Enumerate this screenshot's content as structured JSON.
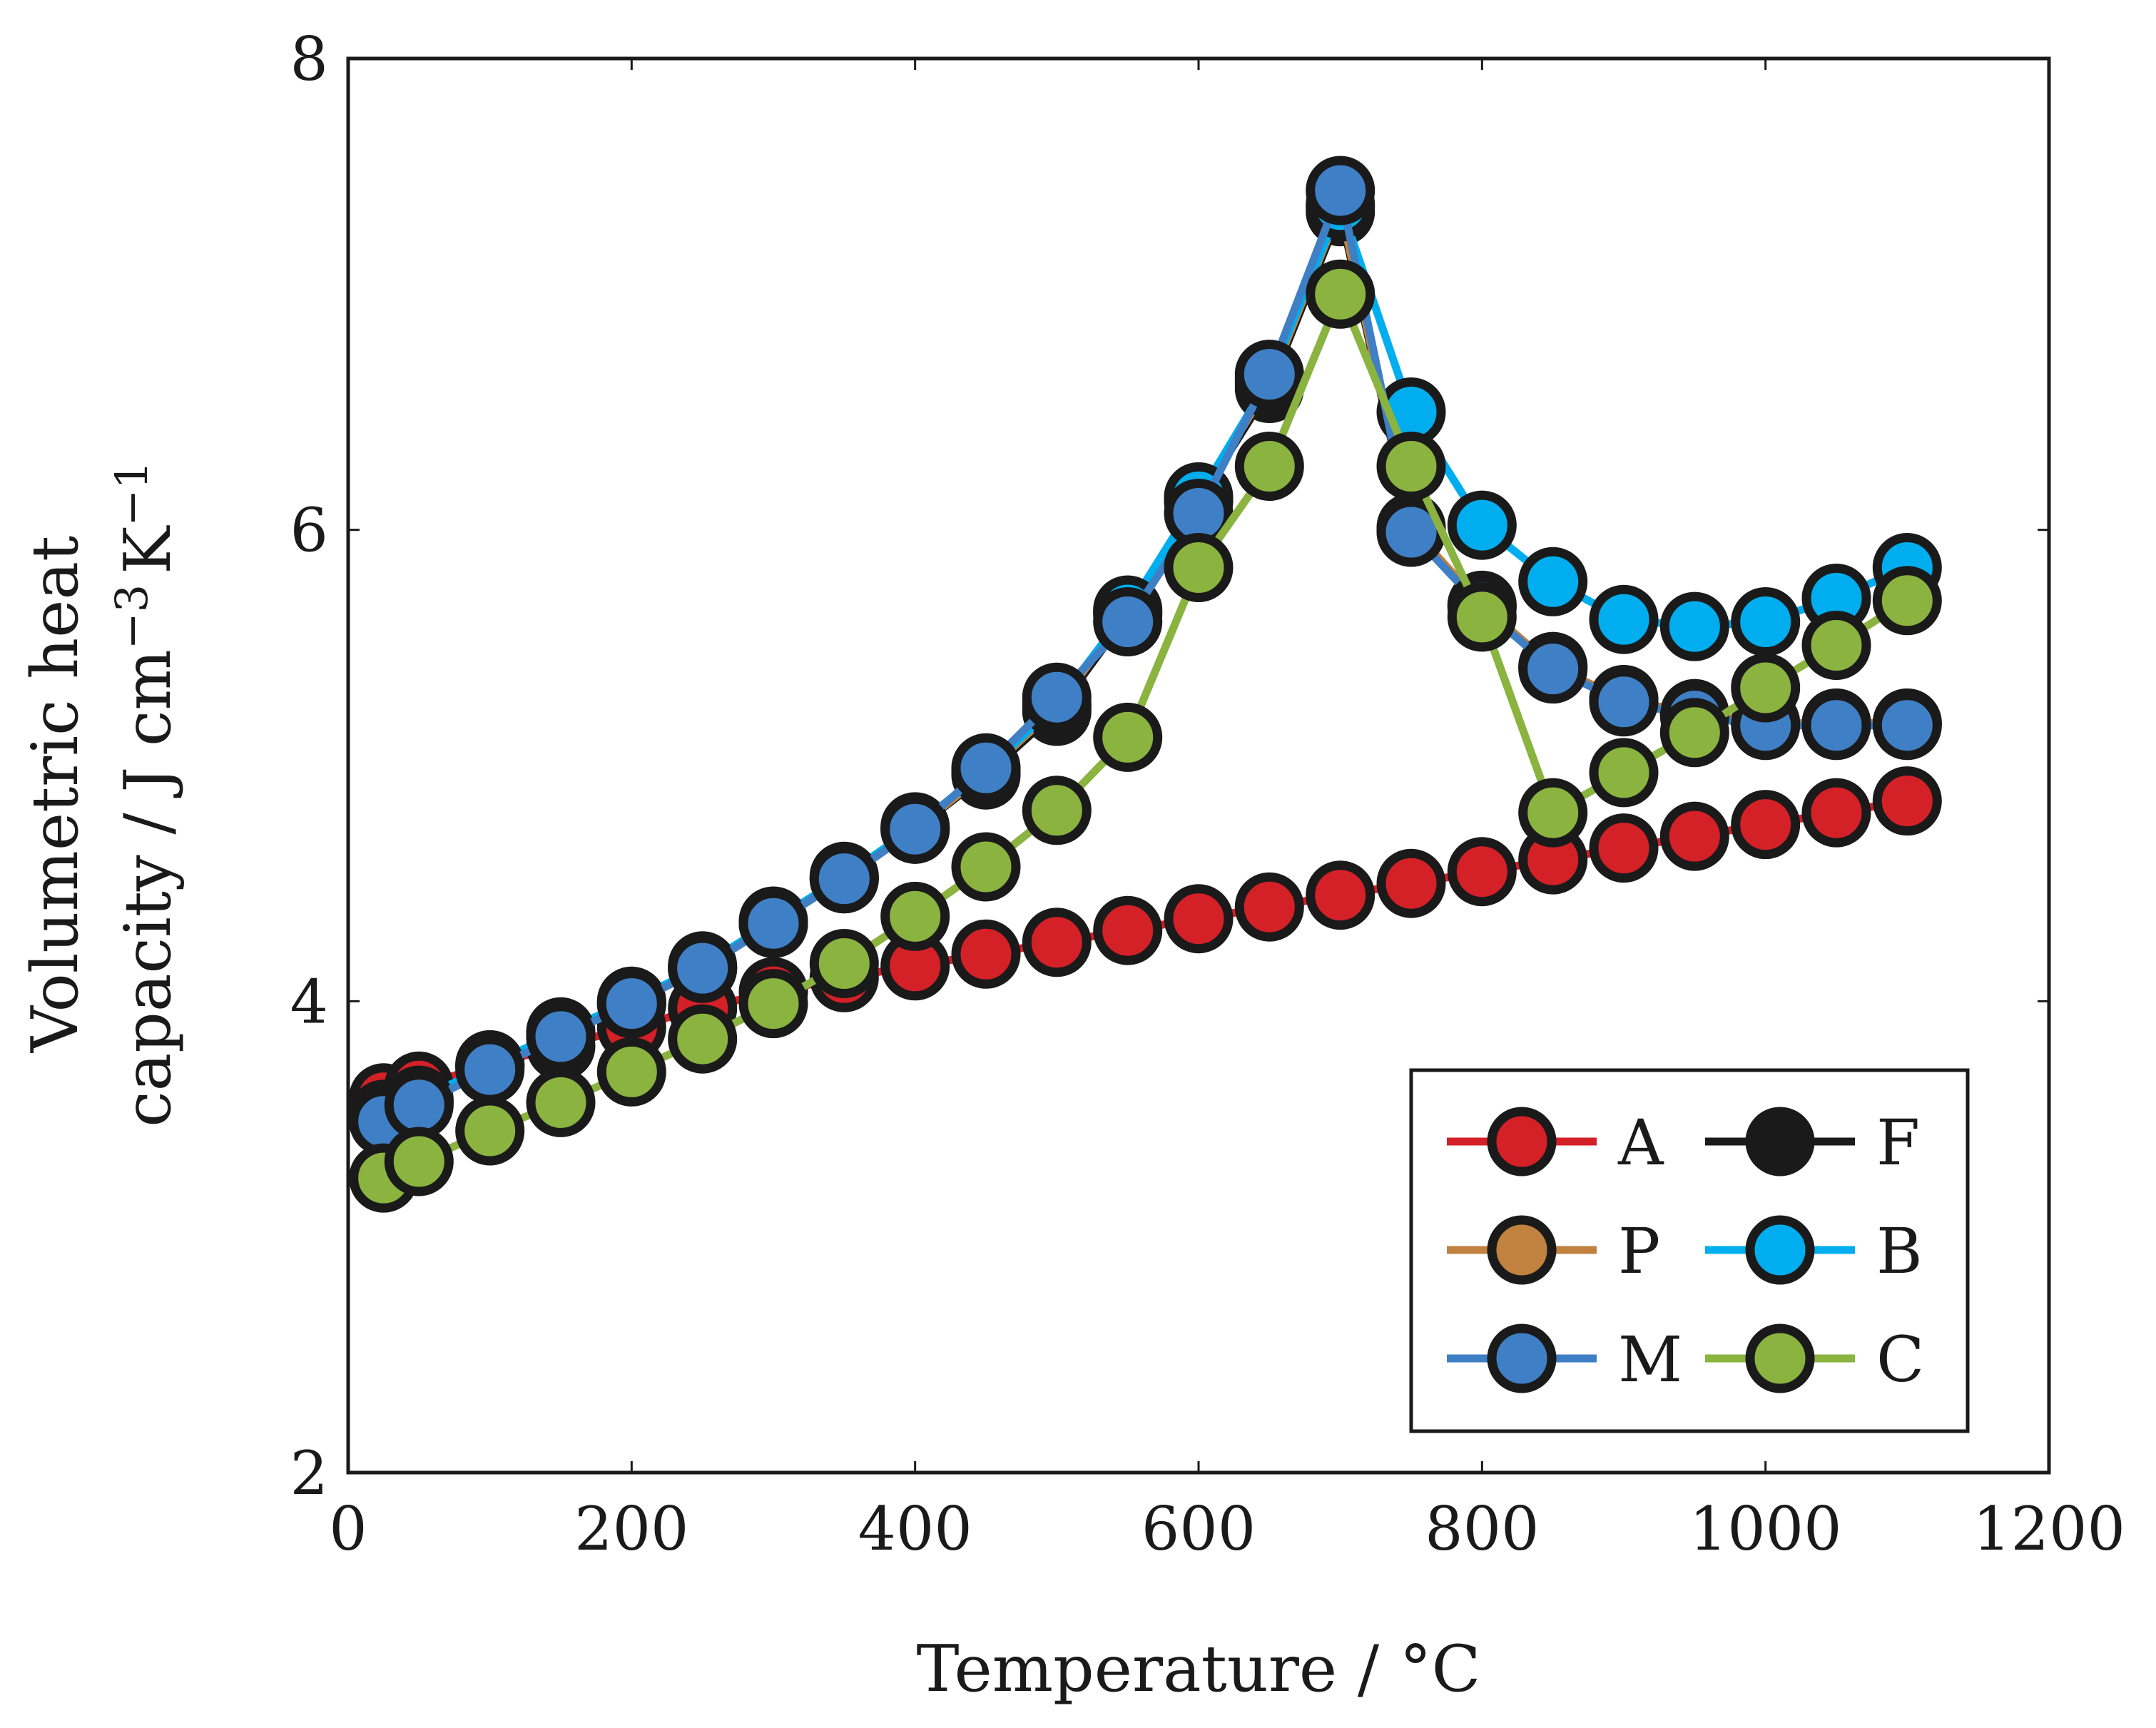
{
  "chart_data": {
    "type": "line",
    "title": "",
    "xlabel": "Temperature / °C",
    "ylabel_line1": "Volumetric heat",
    "ylabel_line2": "capacity / J cm",
    "ylabel_sup1": "−3",
    "ylabel_unit2": "K",
    "ylabel_sup2": "−1",
    "xlim": [
      0,
      1200
    ],
    "ylim": [
      2,
      8
    ],
    "xticks": [
      0,
      200,
      400,
      600,
      800,
      1000,
      1200
    ],
    "yticks": [
      2,
      4,
      6,
      8
    ],
    "grid": false,
    "legend_position": "bottom-right",
    "legend_columns": 2,
    "series": [
      {
        "name": "A",
        "color": "#d42027",
        "x": [
          25,
          50,
          100,
          150,
          200,
          250,
          300,
          350,
          400,
          450,
          500,
          550,
          600,
          650,
          700,
          750,
          800,
          850,
          900,
          950,
          1000,
          1050,
          1100
        ],
        "y": [
          3.59,
          3.64,
          3.73,
          3.81,
          3.89,
          3.97,
          4.04,
          4.1,
          4.15,
          4.2,
          4.25,
          4.3,
          4.35,
          4.4,
          4.45,
          4.5,
          4.55,
          4.6,
          4.65,
          4.7,
          4.75,
          4.8,
          4.85
        ]
      },
      {
        "name": "F",
        "color": "#1a1a1a",
        "x": [
          25,
          50,
          100,
          150,
          200,
          250,
          300,
          350,
          400,
          450,
          500,
          550,
          600,
          650,
          700,
          750,
          800,
          850,
          900,
          950,
          1000,
          1050,
          1100
        ],
        "y": [
          3.52,
          3.58,
          3.73,
          3.86,
          3.99,
          4.14,
          4.33,
          4.52,
          4.73,
          4.96,
          5.23,
          5.64,
          6.12,
          6.6,
          7.35,
          6.0,
          5.68,
          5.42,
          5.28,
          5.22,
          5.18,
          5.18,
          5.18
        ]
      },
      {
        "name": "P",
        "color": "#c1813f",
        "x": [
          25,
          50,
          100,
          150,
          200,
          250,
          300,
          350,
          400,
          450,
          500,
          550,
          600,
          650,
          700,
          750,
          800,
          850,
          900,
          950,
          1000,
          1050,
          1100
        ],
        "y": [
          3.52,
          3.57,
          3.72,
          3.85,
          3.99,
          4.14,
          4.33,
          4.52,
          4.73,
          4.97,
          5.25,
          5.65,
          6.13,
          6.62,
          7.37,
          6.01,
          5.68,
          5.42,
          5.28,
          5.22,
          5.18,
          5.18,
          5.18
        ]
      },
      {
        "name": "B",
        "color": "#00aeef",
        "x": [
          25,
          50,
          100,
          150,
          200,
          250,
          300,
          350,
          400,
          450,
          500,
          550,
          600,
          650,
          700,
          750,
          800,
          850,
          900,
          950,
          1000,
          1050,
          1100
        ],
        "y": [
          3.51,
          3.58,
          3.73,
          3.87,
          4.0,
          4.15,
          4.34,
          4.53,
          4.74,
          4.98,
          5.26,
          5.66,
          6.14,
          6.64,
          7.38,
          6.5,
          6.02,
          5.78,
          5.62,
          5.59,
          5.61,
          5.71,
          5.84
        ]
      },
      {
        "name": "M",
        "color": "#3f7fc5",
        "x": [
          25,
          50,
          100,
          150,
          200,
          250,
          300,
          350,
          400,
          450,
          500,
          550,
          600,
          650,
          700,
          750,
          800,
          850,
          900,
          950,
          1000,
          1050,
          1100
        ],
        "y": [
          3.49,
          3.56,
          3.71,
          3.85,
          3.99,
          4.14,
          4.33,
          4.52,
          4.73,
          4.99,
          5.29,
          5.61,
          6.07,
          6.66,
          7.44,
          5.99,
          5.67,
          5.41,
          5.27,
          5.21,
          5.17,
          5.17,
          5.17
        ]
      },
      {
        "name": "C",
        "color": "#8ab33f",
        "x": [
          25,
          50,
          100,
          150,
          200,
          250,
          300,
          350,
          400,
          450,
          500,
          550,
          600,
          650,
          700,
          750,
          800,
          850,
          900,
          950,
          1000,
          1050,
          1100
        ],
        "y": [
          3.25,
          3.32,
          3.45,
          3.57,
          3.7,
          3.84,
          3.99,
          4.16,
          4.36,
          4.57,
          4.81,
          5.12,
          5.84,
          6.27,
          7.0,
          6.27,
          5.63,
          4.8,
          4.97,
          5.14,
          5.33,
          5.51,
          5.7
        ]
      }
    ]
  }
}
